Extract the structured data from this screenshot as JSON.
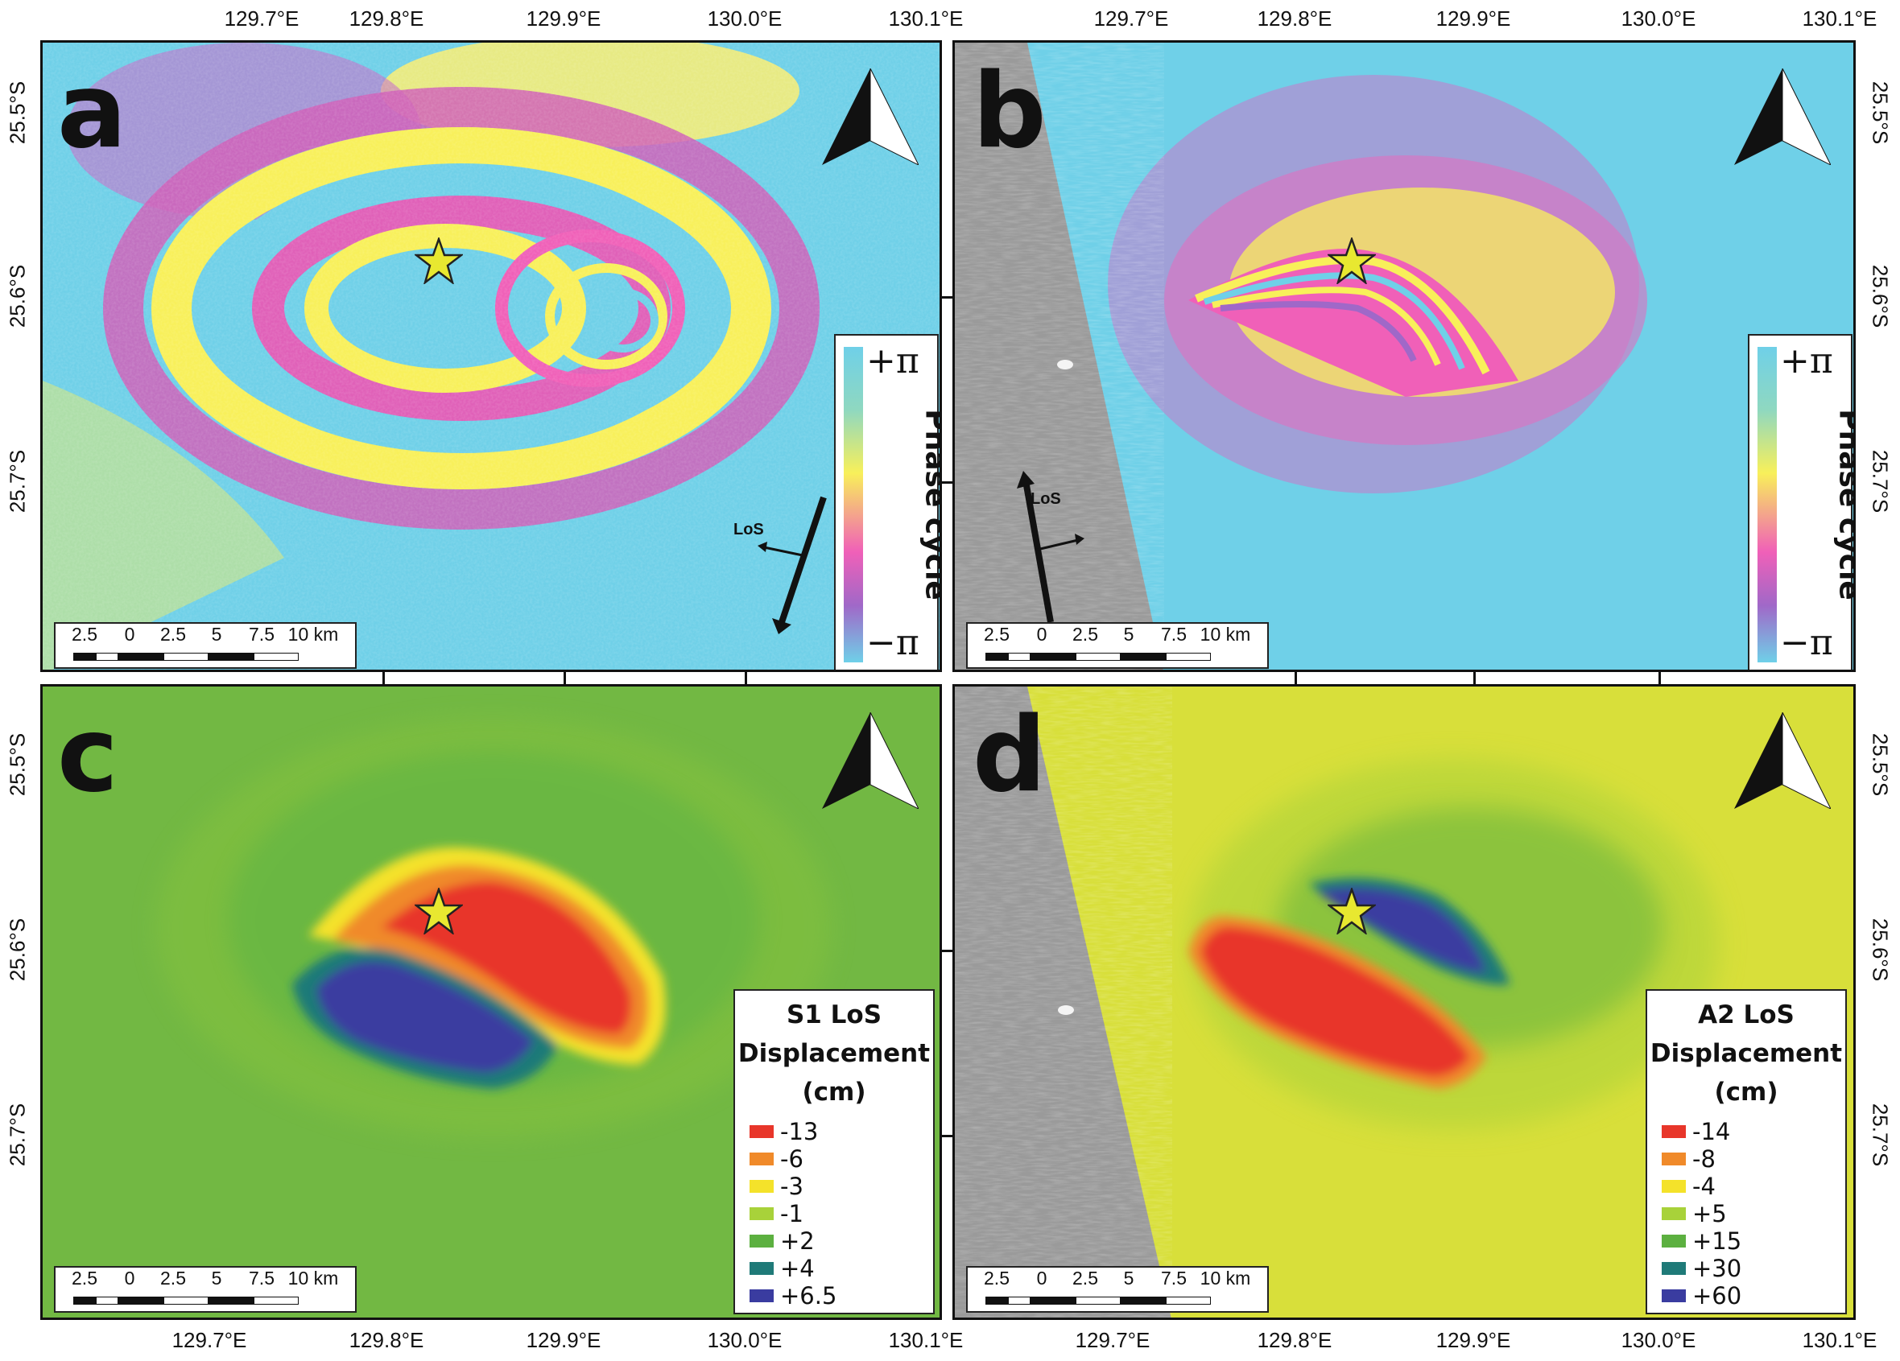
{
  "panels": [
    {
      "letter": "a",
      "type": "wrapped interferogram",
      "track": "S1"
    },
    {
      "letter": "b",
      "type": "wrapped interferogram",
      "track": "A2"
    },
    {
      "letter": "c",
      "type": "unwrapped LoS displacement",
      "track": "S1"
    },
    {
      "letter": "d",
      "type": "unwrapped LoS displacement",
      "track": "A2"
    }
  ],
  "axes": {
    "lon_ticks": [
      "129.7°E",
      "129.8°E",
      "129.9°E",
      "130.0°E",
      "130.1°E"
    ],
    "lat_ticks": [
      "25.5°S",
      "25.6°S",
      "25.7°S"
    ]
  },
  "phase_colorbar": {
    "top_label": "+π",
    "bottom_label": "−π",
    "title": "Phase cycle",
    "colors": [
      "#6fd0e8",
      "#f8f05a",
      "#f060b8",
      "#a068c8",
      "#6fd0e8"
    ]
  },
  "legend_c": {
    "title_lines": [
      "S1 LoS",
      "Displacement",
      "(cm)"
    ],
    "items": [
      {
        "label": "-13",
        "color": "#e8362a"
      },
      {
        "label": "-6",
        "color": "#f08a2a"
      },
      {
        "label": "-3",
        "color": "#f4e22a"
      },
      {
        "label": "-1",
        "color": "#a8d23a"
      },
      {
        "label": "+2",
        "color": "#5cb040"
      },
      {
        "label": "+4",
        "color": "#1f7a78"
      },
      {
        "label": "+6.5",
        "color": "#3a3ca0"
      }
    ]
  },
  "legend_d": {
    "title_lines": [
      "A2 LoS",
      "Displacement",
      "(cm)"
    ],
    "items": [
      {
        "label": "-14",
        "color": "#e8362a"
      },
      {
        "label": "-8",
        "color": "#f08a2a"
      },
      {
        "label": "-4",
        "color": "#f4e22a"
      },
      {
        "label": "+5",
        "color": "#a8d23a"
      },
      {
        "label": "+15",
        "color": "#5cb040"
      },
      {
        "label": "+30",
        "color": "#1f7a78"
      },
      {
        "label": "+60",
        "color": "#3a3ca0"
      }
    ]
  },
  "scalebar": {
    "labels": [
      "2.5",
      "0",
      "2.5",
      "5",
      "7.5",
      "10 km"
    ]
  },
  "los_label": "LoS",
  "epicenter_marker": "star",
  "north_arrow": "north-arrow-icon",
  "colors": {
    "cyan_background": "#6fd0e8",
    "green_background": "#72b843",
    "yellow_background": "#d8df3a",
    "sar_gray": "#9a9a9a",
    "star_fill": "#e8e830"
  }
}
